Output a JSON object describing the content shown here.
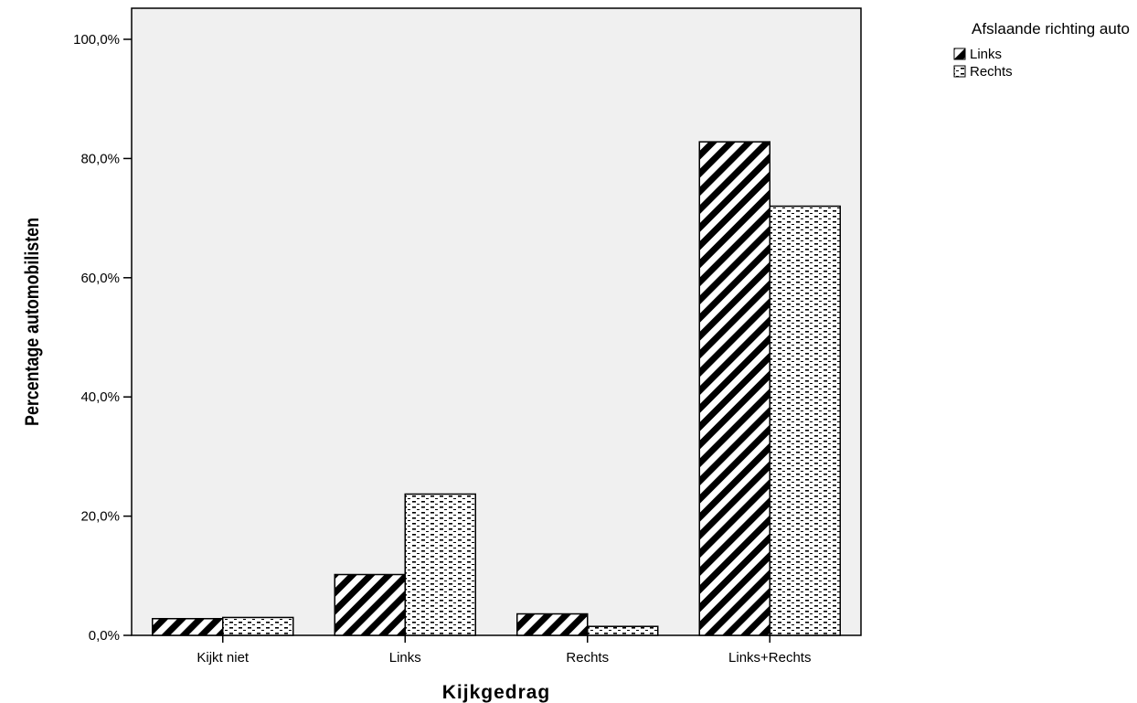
{
  "chart_data": {
    "type": "bar",
    "categories": [
      "Kijkt niet",
      "Links",
      "Rechts",
      "Links+Rechts"
    ],
    "series": [
      {
        "name": "Links",
        "values": [
          2.8,
          10.2,
          3.6,
          82.8
        ],
        "pattern": "diagonal-stripes"
      },
      {
        "name": "Rechts",
        "values": [
          3.0,
          23.7,
          1.5,
          72.0
        ],
        "pattern": "dashed-dots"
      }
    ],
    "xlabel": "Kijkgedrag",
    "ylabel": "Percentage automobilisten",
    "ylim": [
      0,
      100
    ],
    "yticks": [
      "0,0%",
      "20,0%",
      "40,0%",
      "60,0%",
      "80,0%",
      "100,0%"
    ],
    "ytick_values": [
      0,
      20,
      40,
      60,
      80,
      100
    ],
    "legend": {
      "title": "Afslaande richting auto",
      "position": "top-right"
    },
    "grid": false,
    "colors": {
      "plot_background": "#f0f0f0",
      "bar_fill": "#ffffff",
      "ink": "#000000"
    }
  }
}
